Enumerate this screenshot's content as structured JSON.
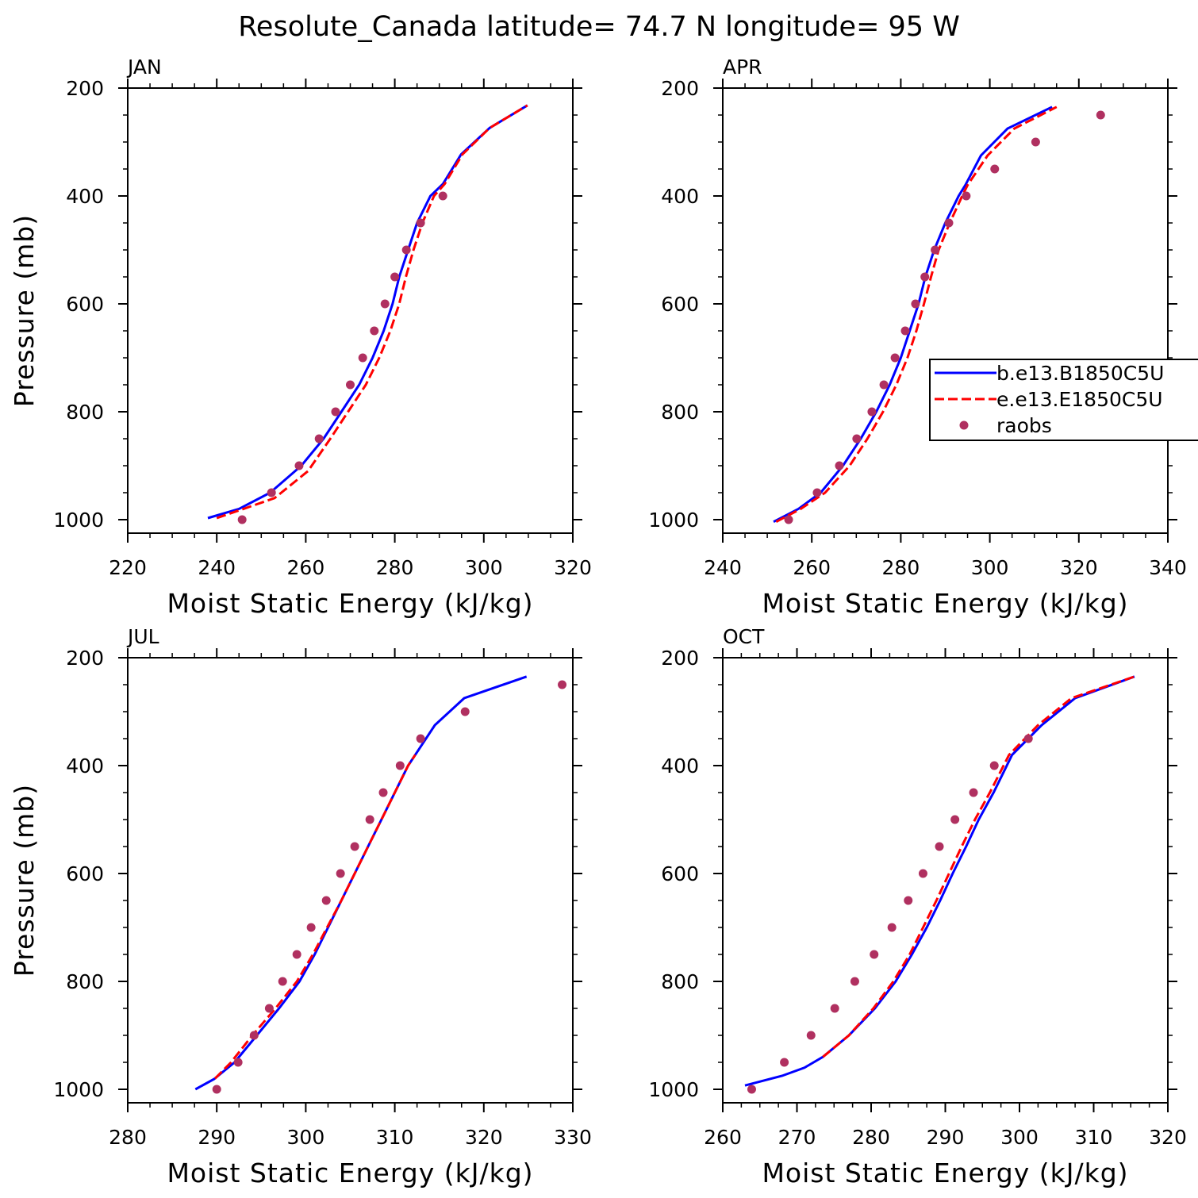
{
  "title": "Resolute_Canada  latitude= 74.7 N longitude= 95 W",
  "chart_data": [
    {
      "type": "line",
      "title": "JAN",
      "xlabel": "Moist Static Energy (kJ/kg)",
      "ylabel": "Pressure (mb)",
      "xlim": [
        220,
        320
      ],
      "xticks": [
        220,
        240,
        260,
        280,
        300,
        320
      ],
      "ylim": [
        1025,
        200
      ],
      "yticks": [
        200,
        400,
        600,
        800,
        1000
      ],
      "series": [
        {
          "type": "line",
          "color": "#0000ff",
          "dash": false,
          "x": [
            238,
            245,
            252,
            259,
            264,
            268,
            272,
            275,
            277.5,
            279.5,
            281,
            283,
            285,
            288,
            290.8,
            294.9,
            301.3,
            309.8
          ],
          "values": [
            997,
            980,
            950,
            900,
            850,
            800,
            750,
            700,
            650,
            600,
            550,
            500,
            450,
            400,
            378,
            323,
            274,
            232
          ]
        },
        {
          "type": "line",
          "color": "#ff0000",
          "dash": true,
          "x": [
            240,
            246,
            253,
            260.5,
            265.5,
            269.5,
            273.5,
            276.5,
            279,
            281,
            282.5,
            284.2,
            286.2,
            288.8,
            291.2,
            295.2,
            301.3,
            309.8
          ],
          "values": [
            997,
            980,
            960,
            910,
            850,
            800,
            750,
            700,
            650,
            600,
            550,
            500,
            450,
            400,
            378,
            323,
            274,
            232
          ]
        },
        {
          "type": "scatter",
          "color": "#b03060",
          "x": [
            245.7,
            252.3,
            258.5,
            263,
            266.7,
            270,
            272.8,
            275.4,
            277.8,
            280,
            282.6,
            285.8,
            290.8
          ],
          "values": [
            1000,
            950,
            900,
            850,
            800,
            750,
            700,
            650,
            600,
            550,
            500,
            450,
            400
          ]
        }
      ]
    },
    {
      "type": "line",
      "title": "APR",
      "xlabel": "Moist Static Energy (kJ/kg)",
      "xlim": [
        240,
        340
      ],
      "xticks": [
        240,
        260,
        280,
        300,
        320,
        340
      ],
      "ylim": [
        1025,
        200
      ],
      "yticks": [
        200,
        400,
        600,
        800,
        1000
      ],
      "legend": "right",
      "series": [
        {
          "type": "line",
          "name": "b.e13.B1850C5U",
          "color": "#0000ff",
          "dash": false,
          "x": [
            251.4,
            257,
            262,
            267,
            271,
            274.5,
            277.5,
            280,
            282,
            284,
            285.5,
            287.5,
            290,
            293,
            294.5,
            298,
            304,
            314
          ],
          "values": [
            1004,
            980,
            950,
            900,
            850,
            800,
            750,
            700,
            650,
            600,
            550,
            500,
            450,
            400,
            380,
            325,
            275,
            235
          ]
        },
        {
          "type": "line",
          "name": "e.e13.E1850C5U",
          "color": "#ff0000",
          "dash": true,
          "x": [
            252,
            257.5,
            263,
            268.5,
            272.5,
            276,
            279,
            281.5,
            283.5,
            285.2,
            286.8,
            288.5,
            291,
            293.8,
            295,
            299.5,
            305.5,
            315
          ],
          "values": [
            1004,
            980,
            950,
            900,
            850,
            800,
            750,
            700,
            650,
            600,
            550,
            500,
            450,
            400,
            380,
            325,
            275,
            235
          ]
        },
        {
          "type": "scatter",
          "name": "raobs",
          "color": "#b03060",
          "x": [
            254.8,
            261.2,
            266.2,
            270.1,
            273.5,
            276.2,
            278.7,
            281,
            283.3,
            285.4,
            287.7,
            290.8,
            294.7,
            301.1,
            310.3,
            324.9
          ],
          "values": [
            1000,
            950,
            900,
            850,
            800,
            750,
            700,
            650,
            600,
            550,
            500,
            450,
            400,
            350,
            300,
            250
          ]
        }
      ]
    },
    {
      "type": "line",
      "title": "JUL",
      "xlabel": "Moist Static Energy (kJ/kg)",
      "ylabel": "Pressure (mb)",
      "xlim": [
        280,
        330
      ],
      "xticks": [
        280,
        290,
        300,
        310,
        320,
        330
      ],
      "ylim": [
        1025,
        200
      ],
      "yticks": [
        200,
        400,
        600,
        800,
        1000
      ],
      "series": [
        {
          "type": "line",
          "color": "#0000ff",
          "dash": false,
          "x": [
            287.6,
            289.7,
            292,
            294.5,
            297,
            299.3,
            301,
            302.5,
            304,
            305.5,
            307,
            308.5,
            310,
            311.5,
            312.3,
            314.5,
            317.8,
            324.8
          ],
          "values": [
            1000,
            981,
            950,
            900,
            850,
            800,
            750,
            700,
            650,
            600,
            550,
            500,
            450,
            400,
            380,
            325,
            275,
            235
          ]
        },
        {
          "type": "line",
          "color": "#ff0000",
          "dash": true,
          "x": [
            289.8,
            291.6,
            294,
            296.6,
            299,
            300.8,
            302.4,
            304,
            305.5,
            307,
            308.5,
            310,
            311.5,
            312.3
          ],
          "values": [
            980,
            950,
            900,
            850,
            800,
            750,
            700,
            650,
            600,
            550,
            500,
            450,
            400,
            380
          ]
        },
        {
          "type": "scatter",
          "color": "#b03060",
          "x": [
            290,
            292.4,
            294.2,
            295.9,
            297.4,
            299,
            300.6,
            302.3,
            303.9,
            305.5,
            307.2,
            308.7,
            310.6,
            312.9,
            317.9,
            328.8
          ],
          "values": [
            1000,
            950,
            900,
            850,
            800,
            750,
            700,
            650,
            600,
            550,
            500,
            450,
            400,
            350,
            300,
            250
          ]
        }
      ]
    },
    {
      "type": "line",
      "title": "OCT",
      "xlabel": "Moist Static Energy (kJ/kg)",
      "xlim": [
        260,
        320
      ],
      "xticks": [
        260,
        270,
        280,
        290,
        300,
        310,
        320
      ],
      "ylim": [
        1025,
        200
      ],
      "yticks": [
        200,
        400,
        600,
        800,
        1000
      ],
      "series": [
        {
          "type": "line",
          "color": "#0000ff",
          "dash": false,
          "x": [
            263,
            268,
            271,
            273.5,
            277,
            280.5,
            283.3,
            285.5,
            287.5,
            289.3,
            291,
            292.8,
            294.5,
            296.5,
            299,
            303,
            307.5,
            315.5
          ],
          "values": [
            993,
            975,
            960,
            940,
            900,
            850,
            800,
            750,
            700,
            650,
            600,
            550,
            500,
            450,
            380,
            325,
            275,
            235
          ]
        },
        {
          "type": "line",
          "color": "#ff0000",
          "dash": true,
          "x": [
            273.5,
            277,
            280.3,
            283,
            285.2,
            287,
            288.8,
            290.5,
            292.2,
            294,
            296,
            298.6,
            302.5,
            307,
            315.5
          ],
          "values": [
            940,
            900,
            850,
            800,
            750,
            700,
            650,
            600,
            550,
            500,
            450,
            380,
            325,
            275,
            235
          ]
        },
        {
          "type": "scatter",
          "color": "#b03060",
          "x": [
            263.9,
            268.3,
            271.9,
            275.1,
            277.8,
            280.4,
            282.8,
            285,
            287,
            289.2,
            291.3,
            293.8,
            296.6,
            301.2
          ],
          "values": [
            1000,
            950,
            900,
            850,
            800,
            750,
            700,
            650,
            600,
            550,
            500,
            450,
            400,
            350
          ]
        }
      ]
    }
  ]
}
